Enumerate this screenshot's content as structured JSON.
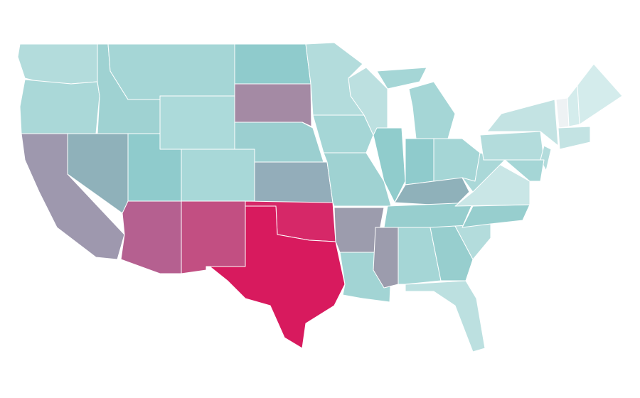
{
  "map": {
    "regions": [
      {
        "color": "#b3dcdc"
      },
      {
        "color": "#aad8d8"
      },
      {
        "color": "#9e98ae"
      },
      {
        "color": "#8fb1ba"
      },
      {
        "color": "#9fd2d2"
      },
      {
        "color": "#a5d6d6"
      },
      {
        "color": "#acdada"
      },
      {
        "color": "#8fcbcc"
      },
      {
        "color": "#a8d8d8"
      },
      {
        "color": "#b56090"
      },
      {
        "color": "#c24f82"
      },
      {
        "color": "#8fcbcc"
      },
      {
        "color": "#a48aa4"
      },
      {
        "color": "#9bcfd0"
      },
      {
        "color": "#93adba"
      },
      {
        "color": "#d62868"
      },
      {
        "color": "#d81a5e"
      },
      {
        "color": "#b3dcdc"
      },
      {
        "color": "#a5d6d6"
      },
      {
        "color": "#9fd2d2"
      },
      {
        "color": "#9c9cad"
      },
      {
        "color": "#a2d4d4"
      },
      {
        "color": "#bce0e0"
      },
      {
        "color": "#90cccc"
      },
      {
        "color": "#a5d6d6"
      },
      {
        "color": "#a5d6d6"
      },
      {
        "color": "#8fcbcc"
      },
      {
        "color": "#a5d6d6"
      },
      {
        "color": "#8fb1ba"
      },
      {
        "color": "#97cece"
      },
      {
        "color": "#9c9cad"
      },
      {
        "color": "#a5d6d6"
      },
      {
        "color": "#97cece"
      },
      {
        "color": "#bce0e0"
      },
      {
        "color": "#b3dcdc"
      },
      {
        "color": "#97cece"
      },
      {
        "color": "#c9e6e6"
      },
      {
        "color": "#aad8d8"
      },
      {
        "color": "#b3dcdc"
      },
      {
        "color": "#c3e3e3"
      },
      {
        "color": "#b3dcdc"
      },
      {
        "color": "#a5d6d6"
      },
      {
        "color": "#eef2f4"
      },
      {
        "color": "#d4ecec"
      },
      {
        "color": "#d4ecec"
      },
      {
        "color": "#c3e3e3"
      }
    ]
  }
}
